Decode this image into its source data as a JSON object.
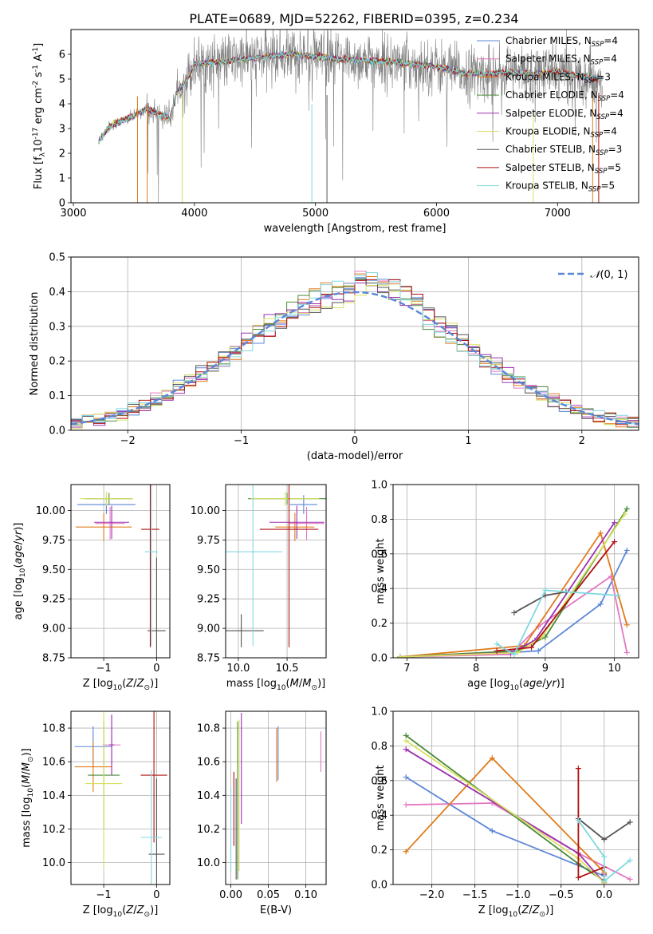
{
  "title": "PLATE=0689, MJD=52262, FIBERID=0395, z=0.234",
  "models": [
    {
      "name": "Chabrier MILES, N$_{SSP}$=4",
      "label_main": "Chabrier MILES, N",
      "label_sub": "SSP",
      "label_tail": "=4",
      "color": "#5b86d8"
    },
    {
      "name": "Salpeter MILES, N$_{SSP}$=4",
      "label_main": "Salpeter MILES, N",
      "label_sub": "SSP",
      "label_tail": "=4",
      "color": "#e377c2"
    },
    {
      "name": "Kroupa MILES, N$_{SSP}$=3",
      "label_main": "Kroupa MILES, N",
      "label_sub": "SSP",
      "label_tail": "=3",
      "color": "#e07b1a"
    },
    {
      "name": "Chabrier ELODIE, N$_{SSP}$=4",
      "label_main": "Chabrier ELODIE, N",
      "label_sub": "SSP",
      "label_tail": "=4",
      "color": "#4a8a3a"
    },
    {
      "name": "Salpeter ELODIE, N$_{SSP}$=4",
      "label_main": "Salpeter ELODIE, N",
      "label_sub": "SSP",
      "label_tail": "=4",
      "color": "#9b30b0"
    },
    {
      "name": "Kroupa ELODIE, N$_{SSP}$=4",
      "label_main": "Kroupa ELODIE, N",
      "label_sub": "SSP",
      "label_tail": "=4",
      "color": "#d8e060"
    },
    {
      "name": "Chabrier STELIB, N$_{SSP}$=3",
      "label_main": "Chabrier STELIB, N",
      "label_sub": "SSP",
      "label_tail": "=3",
      "color": "#555555"
    },
    {
      "name": "Salpeter STELIB, N$_{SSP}$=5",
      "label_main": "Salpeter STELIB, N",
      "label_sub": "SSP",
      "label_tail": "=5",
      "color": "#b01010"
    },
    {
      "name": "Kroupa STELIB, N$_{SSP}$=5",
      "label_main": "Kroupa STELIB, N",
      "label_sub": "SSP",
      "label_tail": "=5",
      "color": "#80d8e0"
    }
  ],
  "chart_data": [
    {
      "id": "spectrum",
      "type": "line",
      "xlabel": "wavelength [Angstrom, rest frame]",
      "ylabel": "Flux [f$_\\lambda$10$^{-17}$ erg cm$^{-2}$ s$^{-1}$ A$^{-1}$]",
      "xlim": [
        2980,
        7670
      ],
      "ylim": [
        0,
        7
      ],
      "xticks": [
        3000,
        4000,
        5000,
        6000,
        7000
      ],
      "yticks": [
        0,
        1,
        2,
        3,
        4,
        5,
        6
      ],
      "data_color": "#808080",
      "data_range": [
        3210,
        7370
      ],
      "continuum": {
        "x": [
          3210,
          3300,
          3400,
          3500,
          3600,
          3700,
          3800,
          3850,
          3950,
          4000,
          4200,
          4400,
          4600,
          4800,
          5000,
          5200,
          5400,
          5600,
          5800,
          6000,
          6200,
          6400,
          6600,
          6800,
          7000,
          7200,
          7370
        ],
        "y": [
          2.5,
          3.1,
          3.3,
          3.5,
          3.8,
          3.6,
          3.4,
          4.4,
          5.1,
          5.6,
          5.7,
          5.8,
          5.9,
          6.0,
          5.9,
          5.8,
          5.75,
          5.7,
          5.6,
          5.5,
          5.25,
          5.2,
          5.3,
          5.2,
          5.3,
          5.1,
          5.0
        ]
      },
      "legend_position": "upper right"
    },
    {
      "id": "residuals",
      "type": "bar",
      "xlabel": "(data-model)/error",
      "ylabel": "Normed distribution",
      "xlim": [
        -2.5,
        2.5
      ],
      "ylim": [
        0,
        0.5
      ],
      "xticks": [
        -2,
        -1,
        0,
        1,
        2
      ],
      "yticks": [
        0.0,
        0.1,
        0.2,
        0.3,
        0.4,
        0.5
      ],
      "bin_width": 0.1,
      "gaussian_label": "$\\mathcal{N}(0,1)$",
      "gaussian_color": "#5b86d8",
      "grid": true,
      "legend_position": "upper right"
    },
    {
      "id": "age-vs-Z",
      "type": "scatter",
      "xlabel": "Z [log$_{10}$($Z/Z_\\odot$)]",
      "ylabel": "age  [log$_{10}$($age/yr$)]",
      "xlim": [
        -1.62,
        0.25
      ],
      "ylim": [
        8.75,
        10.22
      ],
      "xticks": [
        -1,
        0
      ],
      "yticks": [
        8.75,
        9.0,
        9.25,
        9.5,
        9.75,
        10.0
      ],
      "points": [
        {
          "x": -0.95,
          "xerr": 0.55,
          "y": 10.05,
          "yerr": 0.08
        },
        {
          "x": -0.88,
          "xerr": 0.28,
          "y": 9.89,
          "yerr": 0.14
        },
        {
          "x": -1.0,
          "xerr": 0.53,
          "y": 9.86,
          "yerr": 0.12
        },
        {
          "x": -0.9,
          "xerr": 0.45,
          "y": 10.1,
          "yerr": 0.05
        },
        {
          "x": -0.85,
          "xerr": 0.33,
          "y": 9.9,
          "yerr": 0.14
        },
        {
          "x": -0.95,
          "xerr": 0.5,
          "y": 10.1,
          "yerr": 0.06
        },
        {
          "x": 0.0,
          "xerr": 0.17,
          "y": 8.98,
          "yerr": 0.62
        },
        {
          "x": -0.12,
          "xerr": 0.17,
          "y": 9.84,
          "yerr": 1.0
        },
        {
          "x": -0.1,
          "xerr": 0.12,
          "y": 9.65,
          "yerr": 0.8
        }
      ],
      "grid": true
    },
    {
      "id": "age-vs-mass",
      "type": "scatter",
      "xlabel": "mass [log$_{10}$($M/M_\\odot$)]",
      "ylabel": "",
      "xlim": [
        9.87,
        10.9
      ],
      "ylim": [
        8.75,
        10.22
      ],
      "xticks": [
        10.0,
        10.5
      ],
      "yticks": [
        8.75,
        9.0,
        9.25,
        9.5,
        9.75,
        10.0
      ],
      "points": [
        {
          "x": 10.67,
          "xerr": 0.14,
          "y": 10.05,
          "yerr": 0.08
        },
        {
          "x": 10.7,
          "xerr": 0.18,
          "y": 9.89,
          "yerr": 0.14
        },
        {
          "x": 10.58,
          "xerr": 0.2,
          "y": 9.86,
          "yerr": 0.12
        },
        {
          "x": 10.5,
          "xerr": 0.4,
          "y": 10.1,
          "yerr": 0.05
        },
        {
          "x": 10.6,
          "xerr": 0.28,
          "y": 9.9,
          "yerr": 0.14
        },
        {
          "x": 10.48,
          "xerr": 0.35,
          "y": 10.1,
          "yerr": 0.06
        },
        {
          "x": 10.03,
          "xerr": 0.23,
          "y": 8.98,
          "yerr": 0.14
        },
        {
          "x": 10.52,
          "xerr": 0.3,
          "y": 9.84,
          "yerr": 1.0
        },
        {
          "x": 10.15,
          "xerr": 0.3,
          "y": 9.65,
          "yerr": 0.8
        }
      ],
      "grid": true
    },
    {
      "id": "weight-vs-age",
      "type": "line",
      "xlabel": "age  [log$_{10}$($age/yr$)]",
      "ylabel": "mass weight",
      "xlim": [
        6.8,
        10.35
      ],
      "ylim": [
        0,
        1.0
      ],
      "xticks": [
        7,
        8,
        9,
        10
      ],
      "yticks": [
        0.0,
        0.2,
        0.4,
        0.6,
        0.8,
        1.0
      ],
      "series": [
        {
          "x": [
            6.9,
            8.5,
            8.9,
            9.8,
            10.18
          ],
          "y": [
            0.005,
            0.03,
            0.04,
            0.31,
            0.62
          ]
        },
        {
          "x": [
            6.9,
            8.5,
            8.9,
            9.95,
            10.18
          ],
          "y": [
            0.005,
            0.02,
            0.18,
            0.47,
            0.03
          ]
        },
        {
          "x": [
            6.9,
            8.7,
            9.8,
            10.18
          ],
          "y": [
            0.005,
            0.07,
            0.72,
            0.19
          ]
        },
        {
          "x": [
            6.9,
            8.6,
            9.0,
            10.18
          ],
          "y": [
            0.005,
            0.04,
            0.12,
            0.86
          ]
        },
        {
          "x": [
            6.9,
            8.5,
            8.85,
            10.0
          ],
          "y": [
            0.005,
            0.03,
            0.1,
            0.78
          ]
        },
        {
          "x": [
            6.9,
            8.6,
            8.95,
            10.15
          ],
          "y": [
            0.005,
            0.03,
            0.12,
            0.83
          ]
        },
        {
          "x": [
            8.55,
            9.0,
            9.3
          ],
          "y": [
            0.26,
            0.36,
            0.38
          ]
        },
        {
          "x": [
            8.3,
            8.8,
            10.0
          ],
          "y": [
            0.04,
            0.06,
            0.67
          ]
        },
        {
          "x": [
            8.3,
            8.55,
            9.0,
            10.05
          ],
          "y": [
            0.08,
            0.02,
            0.39,
            0.36
          ]
        }
      ],
      "grid": true
    },
    {
      "id": "mass-vs-Z",
      "type": "scatter",
      "xlabel": "Z [log$_{10}$($Z/Z_\\odot$)]",
      "ylabel": "mass [log$_{10}$($M/M_\\odot$)]",
      "xlim": [
        -1.62,
        0.25
      ],
      "ylim": [
        9.87,
        10.9
      ],
      "xticks": [
        -1,
        0
      ],
      "yticks": [
        10.0,
        10.2,
        10.4,
        10.6,
        10.8
      ],
      "points": [
        {
          "x": -1.2,
          "xerr": 0.35,
          "y": 10.69,
          "yerr": 0.12
        },
        {
          "x": -0.85,
          "xerr": 0.17,
          "y": 10.7,
          "yerr": 0.18
        },
        {
          "x": -1.2,
          "xerr": 0.35,
          "y": 10.57,
          "yerr": 0.15
        },
        {
          "x": -1.0,
          "xerr": 0.3,
          "y": 10.52,
          "yerr": 0.32
        },
        {
          "x": -0.85,
          "xerr": 0.05,
          "y": 10.7,
          "yerr": 0.18
        },
        {
          "x": -1.0,
          "xerr": 0.35,
          "y": 10.47,
          "yerr": 0.5
        },
        {
          "x": 0.0,
          "xerr": 0.15,
          "y": 10.05,
          "yerr": 0.45
        },
        {
          "x": -0.05,
          "xerr": 0.25,
          "y": 10.52,
          "yerr": 0.4
        },
        {
          "x": -0.1,
          "xerr": 0.2,
          "y": 10.15,
          "yerr": 0.4
        }
      ],
      "grid": true
    },
    {
      "id": "mass-vs-ebv",
      "type": "scatter",
      "xlabel": "E(B-V)",
      "ylabel": "",
      "xlim": [
        -0.007,
        0.127
      ],
      "ylim": [
        9.87,
        10.9
      ],
      "xticks": [
        0.0,
        0.05,
        0.1
      ],
      "yticks": [
        10.0,
        10.2,
        10.4,
        10.6,
        10.8
      ],
      "points": [
        {
          "x": 0.063,
          "xerr": 0,
          "y": 10.65,
          "yerr": 0.16
        },
        {
          "x": 0.12,
          "xerr": 0,
          "y": 10.66,
          "yerr": 0.12
        },
        {
          "x": 0.061,
          "xerr": 0,
          "y": 10.64,
          "yerr": 0.16
        },
        {
          "x": 0.009,
          "xerr": 0,
          "y": 10.37,
          "yerr": 0.47
        },
        {
          "x": 0.014,
          "xerr": 0,
          "y": 10.56,
          "yerr": 0.33
        },
        {
          "x": 0.011,
          "xerr": 0,
          "y": 10.4,
          "yerr": 0.45
        },
        {
          "x": 0.007,
          "xerr": 0,
          "y": 10.2,
          "yerr": 0.3
        },
        {
          "x": 0.004,
          "xerr": 0,
          "y": 10.32,
          "yerr": 0.22
        },
        {
          "x": 0.0,
          "xerr": 0,
          "y": 10.2,
          "yerr": 0.25
        }
      ],
      "grid": true
    },
    {
      "id": "weight-vs-Z",
      "type": "line",
      "xlabel": "Z [log$_{10}$($Z/Z_\\odot$)]",
      "ylabel": "mass weight",
      "xlim": [
        -2.45,
        0.4
      ],
      "ylim": [
        0,
        1.0
      ],
      "xticks": [
        -2.0,
        -1.5,
        -1.0,
        -0.5,
        0.0
      ],
      "yticks": [
        0.0,
        0.2,
        0.4,
        0.6,
        0.8,
        1.0
      ],
      "series": [
        {
          "x": [
            -2.3,
            -1.3,
            0.0,
            0.0
          ],
          "y": [
            0.62,
            0.31,
            0.05,
            0.03
          ]
        },
        {
          "x": [
            -2.3,
            -1.3,
            -0.3,
            0.3
          ],
          "y": [
            0.46,
            0.47,
            0.18,
            0.03
          ]
        },
        {
          "x": [
            -2.3,
            -1.3,
            0.0,
            0.0
          ],
          "y": [
            0.19,
            0.73,
            0.07,
            0.01
          ]
        },
        {
          "x": [
            -2.3,
            -0.3,
            0.0
          ],
          "y": [
            0.86,
            0.12,
            0.02
          ]
        },
        {
          "x": [
            -2.3,
            -0.3,
            0.0
          ],
          "y": [
            0.78,
            0.18,
            0.01
          ]
        },
        {
          "x": [
            -2.3,
            -0.3,
            0.0
          ],
          "y": [
            0.83,
            0.15,
            0.01
          ]
        },
        {
          "x": [
            -0.3,
            0.0,
            0.3
          ],
          "y": [
            0.38,
            0.26,
            0.36
          ]
        },
        {
          "x": [
            -0.3,
            -0.3,
            0.0,
            0.0
          ],
          "y": [
            0.67,
            0.04,
            0.1,
            0.06
          ]
        },
        {
          "x": [
            -0.3,
            0.0,
            0.0,
            0.3
          ],
          "y": [
            0.37,
            0.16,
            0.02,
            0.14
          ]
        }
      ],
      "grid": true
    }
  ]
}
